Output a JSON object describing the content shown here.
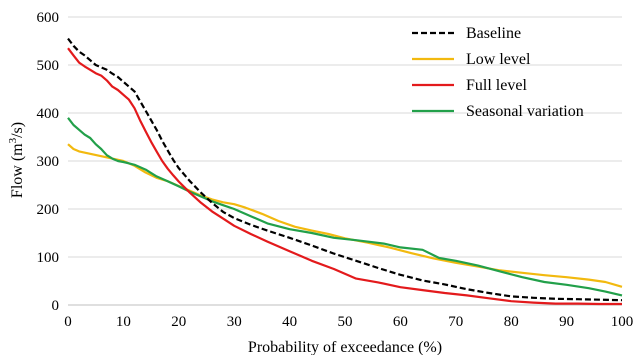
{
  "chart_data": {
    "type": "line",
    "title": "",
    "xlabel": "Probability of exceedance (%)",
    "ylabel_parts": [
      "Flow (m",
      "3",
      "/s)"
    ],
    "xlim": [
      0,
      100
    ],
    "ylim": [
      0,
      600
    ],
    "xticks": [
      0,
      10,
      20,
      30,
      40,
      50,
      60,
      70,
      80,
      90,
      100
    ],
    "yticks": [
      0,
      100,
      200,
      300,
      400,
      500,
      600
    ],
    "grid": "horizontal",
    "legend_position": "top-right",
    "series": [
      {
        "name": "Baseline",
        "color": "#000000",
        "dash": "dashed",
        "x": [
          0,
          1,
          2,
          3,
          4,
          5,
          6,
          7,
          8,
          9,
          10,
          11,
          12,
          13,
          14,
          15,
          16,
          17,
          18,
          19,
          20,
          22,
          24,
          26,
          28,
          30,
          33,
          36,
          40,
          44,
          48,
          52,
          56,
          60,
          64,
          68,
          72,
          76,
          80,
          84,
          88,
          92,
          96,
          100
        ],
        "y": [
          555,
          540,
          528,
          520,
          510,
          500,
          495,
          490,
          482,
          475,
          465,
          455,
          445,
          425,
          405,
          385,
          365,
          342,
          322,
          302,
          285,
          258,
          234,
          213,
          194,
          181,
          167,
          155,
          140,
          124,
          107,
          92,
          77,
          63,
          51,
          43,
          33,
          25,
          18,
          15,
          13,
          12,
          11,
          10
        ]
      },
      {
        "name": "Low level",
        "color": "#f2b90f",
        "dash": "solid",
        "x": [
          0,
          1,
          2,
          4,
          6,
          8,
          10,
          12,
          14,
          16,
          18,
          20,
          22,
          24,
          26,
          28,
          30,
          32,
          35,
          38,
          41,
          44,
          47,
          50,
          54,
          58,
          62,
          66,
          70,
          74,
          78,
          82,
          86,
          90,
          94,
          97,
          100
        ],
        "y": [
          335,
          325,
          320,
          315,
          310,
          305,
          300,
          290,
          276,
          265,
          258,
          248,
          238,
          228,
          220,
          214,
          210,
          203,
          190,
          175,
          163,
          155,
          148,
          139,
          130,
          120,
          108,
          97,
          88,
          80,
          72,
          67,
          62,
          58,
          53,
          48,
          38
        ]
      },
      {
        "name": "Full level",
        "color": "#e31a1c",
        "dash": "solid",
        "x": [
          0,
          1,
          2,
          3,
          4,
          5,
          6,
          7,
          8,
          9,
          10,
          11,
          12,
          13,
          14,
          15,
          16,
          17,
          18,
          19,
          20,
          22,
          24,
          26,
          28,
          30,
          33,
          36,
          40,
          44,
          48,
          52,
          56,
          60,
          64,
          68,
          72,
          76,
          80,
          84,
          88,
          92,
          96,
          100
        ],
        "y": [
          535,
          520,
          505,
          497,
          490,
          483,
          478,
          468,
          455,
          448,
          438,
          428,
          410,
          385,
          362,
          340,
          320,
          300,
          284,
          270,
          257,
          234,
          213,
          195,
          180,
          165,
          148,
          132,
          112,
          92,
          75,
          55,
          47,
          37,
          31,
          25,
          20,
          14,
          8,
          5,
          3,
          3,
          2,
          2
        ]
      },
      {
        "name": "Seasonal variation",
        "color": "#22a04a",
        "dash": "solid",
        "x": [
          0,
          1,
          2,
          3,
          4,
          5,
          6,
          7,
          8,
          9,
          10,
          12,
          14,
          16,
          18,
          20,
          22,
          24,
          26,
          28,
          30,
          33,
          36,
          40,
          44,
          48,
          52,
          57,
          60,
          64,
          67,
          70,
          74,
          78,
          82,
          86,
          90,
          94,
          97,
          100
        ],
        "y": [
          390,
          375,
          365,
          355,
          348,
          335,
          325,
          312,
          305,
          300,
          298,
          292,
          282,
          268,
          258,
          247,
          236,
          226,
          216,
          208,
          200,
          185,
          170,
          158,
          150,
          140,
          135,
          128,
          120,
          115,
          98,
          92,
          82,
          70,
          58,
          48,
          42,
          35,
          28,
          20
        ]
      }
    ]
  }
}
